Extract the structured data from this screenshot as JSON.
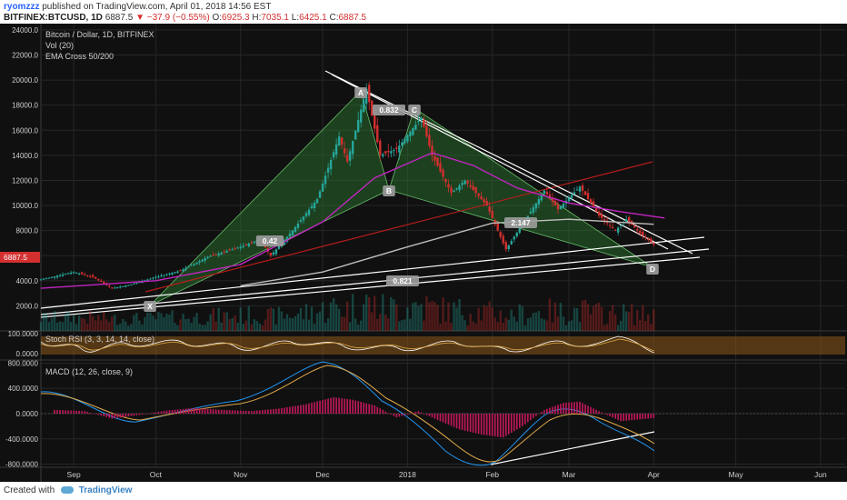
{
  "header": {
    "user": "ryomzzz",
    "published_text": "published on TradingView.com, April 01, 2018 14:56 EST",
    "symbol": "BITFINEX:BTCUSD, 1D",
    "last": "6887.5",
    "change": "−37.9 (−0.55%)",
    "o_label": "O:",
    "o": "6925.3",
    "h_label": "H:",
    "h": "7035.1",
    "l_label": "L:",
    "l": "6425.1",
    "c_label": "C:",
    "c": "6887.5"
  },
  "footer": {
    "created_with": "Created with",
    "brand": "TradingView"
  },
  "legend": {
    "line1": "Bitcoin / Dollar, 1D, BITFINEX",
    "line2": "Vol (20)",
    "line3": "EMA Cross 50/200"
  },
  "colors": {
    "background": "#101010",
    "bull": "#26a69a",
    "bear": "#d32f2f",
    "ema50": "#c026c0",
    "ema200": "#bdbdbd",
    "pattern_fill": "#2e7d32",
    "trendline": "#ffffff",
    "red_line": "#b71c1c"
  },
  "price_label": "6887.5",
  "chart_data": [
    {
      "type": "line",
      "panel": "price",
      "ylim": [
        0,
        24500
      ],
      "y_ticks": [
        "2000.0",
        "4000.0",
        "6000.0",
        "8000.0",
        "10000.0",
        "12000.0",
        "14000.0",
        "16000.0",
        "18000.0",
        "20000.0",
        "22000.0",
        "24000.0"
      ],
      "y_tick_values": [
        2000,
        4000,
        6000,
        8000,
        10000,
        12000,
        14000,
        16000,
        18000,
        20000,
        22000,
        24000
      ],
      "x_ticks": [
        "Sep",
        "Oct",
        "Nov",
        "Dec",
        "2018",
        "Feb",
        "Mar",
        "Apr",
        "May",
        "Jun"
      ],
      "x_tick_dates": [
        "2017-09-01",
        "2017-10-01",
        "2017-11-01",
        "2017-12-01",
        "2018-01-01",
        "2018-02-01",
        "2018-03-01",
        "2018-04-01",
        "2018-05-01",
        "2018-06-01"
      ],
      "x_range": [
        "2017-08-20",
        "2018-06-10"
      ],
      "series": [
        {
          "kind": "price",
          "points": [
            [
              "2017-08-20",
              4100
            ],
            [
              "2017-09-01",
              4700
            ],
            [
              "2017-09-08",
              4300
            ],
            [
              "2017-09-15",
              3400
            ],
            [
              "2017-09-22",
              3700
            ],
            [
              "2017-10-01",
              4300
            ],
            [
              "2017-10-10",
              4800
            ],
            [
              "2017-10-20",
              5900
            ],
            [
              "2017-11-01",
              6700
            ],
            [
              "2017-11-08",
              7300
            ],
            [
              "2017-11-12",
              6000
            ],
            [
              "2017-11-20",
              8000
            ],
            [
              "2017-11-29",
              10500
            ],
            [
              "2017-12-07",
              15500
            ],
            [
              "2017-12-10",
              13500
            ],
            [
              "2017-12-17",
              19300
            ],
            [
              "2017-12-22",
              14000
            ],
            [
              "2017-12-28",
              14500
            ],
            [
              "2018-01-06",
              17000
            ],
            [
              "2018-01-10",
              14000
            ],
            [
              "2018-01-17",
              11000
            ],
            [
              "2018-01-22",
              12000
            ],
            [
              "2018-01-30",
              10000
            ],
            [
              "2018-02-06",
              6500
            ],
            [
              "2018-02-12",
              8500
            ],
            [
              "2018-02-20",
              11200
            ],
            [
              "2018-02-25",
              9700
            ],
            [
              "2018-03-05",
              11500
            ],
            [
              "2018-03-12",
              9200
            ],
            [
              "2018-03-18",
              8000
            ],
            [
              "2018-03-22",
              8900
            ],
            [
              "2018-03-27",
              7800
            ],
            [
              "2018-04-01",
              6887.5
            ]
          ]
        },
        {
          "kind": "ema50",
          "points": [
            [
              "2017-08-20",
              3400
            ],
            [
              "2017-10-01",
              4000
            ],
            [
              "2017-11-01",
              5300
            ],
            [
              "2017-12-01",
              8700
            ],
            [
              "2017-12-20",
              12200
            ],
            [
              "2018-01-10",
              14200
            ],
            [
              "2018-01-25",
              13200
            ],
            [
              "2018-02-10",
              11400
            ],
            [
              "2018-03-01",
              10200
            ],
            [
              "2018-03-20",
              9500
            ],
            [
              "2018-04-05",
              9000
            ]
          ]
        },
        {
          "kind": "ema200",
          "points": [
            [
              "2017-11-01",
              3600
            ],
            [
              "2017-12-01",
              4700
            ],
            [
              "2018-01-01",
              6700
            ],
            [
              "2018-02-01",
              8600
            ],
            [
              "2018-03-01",
              8900
            ],
            [
              "2018-04-01",
              8500
            ]
          ]
        }
      ],
      "annotations": [
        "A",
        "B",
        "C",
        "D",
        "X",
        "0.832",
        "0.42",
        "2.147",
        "0.821"
      ]
    },
    {
      "type": "bar",
      "panel": "volume",
      "title": "Vol (20)"
    },
    {
      "type": "line",
      "panel": "stoch_rsi",
      "title": "Stoch RSI (3, 3, 14, 14, close)",
      "y_ticks": [
        "100.0000",
        "0.0000"
      ],
      "ylim": [
        0,
        100
      ]
    },
    {
      "type": "bar",
      "panel": "macd",
      "title": "MACD (12, 26, close, 9)",
      "y_ticks": [
        "800.0000",
        "400.0000",
        "0.0000",
        "-400.0000",
        "-800.0000"
      ],
      "y_tick_values": [
        800,
        400,
        0,
        -400,
        -800
      ],
      "ylim": [
        -850,
        850
      ],
      "histogram": [
        [
          "2017-08-25",
          60
        ],
        [
          "2017-09-05",
          40
        ],
        [
          "2017-09-15",
          -80
        ],
        [
          "2017-09-25",
          -20
        ],
        [
          "2017-10-05",
          50
        ],
        [
          "2017-10-15",
          90
        ],
        [
          "2017-10-25",
          60
        ],
        [
          "2017-11-05",
          40
        ],
        [
          "2017-11-15",
          80
        ],
        [
          "2017-11-25",
          150
        ],
        [
          "2017-12-05",
          260
        ],
        [
          "2017-12-12",
          220
        ],
        [
          "2017-12-20",
          130
        ],
        [
          "2017-12-28",
          -60
        ],
        [
          "2018-01-05",
          40
        ],
        [
          "2018-01-12",
          -100
        ],
        [
          "2018-01-20",
          -250
        ],
        [
          "2018-01-28",
          -330
        ],
        [
          "2018-02-05",
          -380
        ],
        [
          "2018-02-12",
          -200
        ],
        [
          "2018-02-20",
          60
        ],
        [
          "2018-02-27",
          170
        ],
        [
          "2018-03-05",
          190
        ],
        [
          "2018-03-12",
          40
        ],
        [
          "2018-03-20",
          -120
        ],
        [
          "2018-03-27",
          -90
        ],
        [
          "2018-04-01",
          -70
        ]
      ]
    }
  ]
}
